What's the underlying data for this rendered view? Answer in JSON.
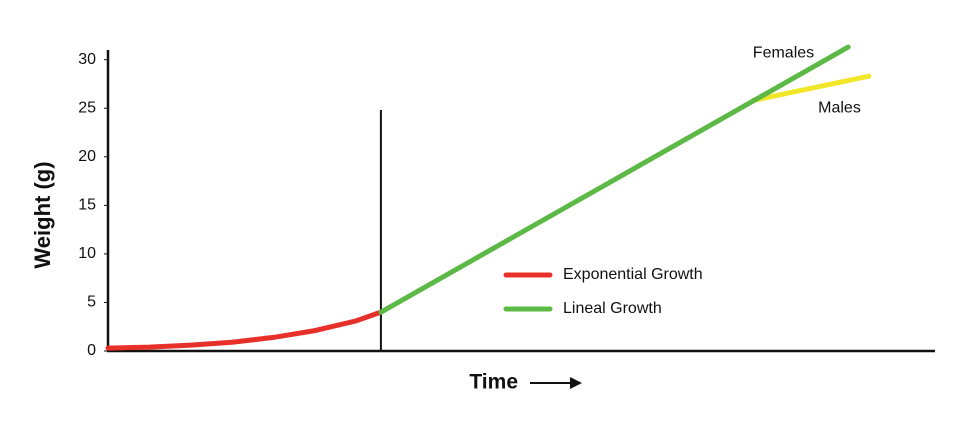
{
  "chart_data": {
    "type": "line",
    "ylabel": "Weight (g)",
    "xlabel": "Time",
    "xlim": [
      0,
      100
    ],
    "ylim": [
      0,
      31
    ],
    "yticks": [
      0,
      5,
      10,
      15,
      20,
      25,
      30
    ],
    "series": [
      {
        "name": "Exponential Growth",
        "color": "#e8302a",
        "x": [
          0,
          5,
          10,
          15,
          20,
          25,
          30,
          33
        ],
        "values": [
          0.3,
          0.4,
          0.6,
          0.9,
          1.4,
          2.1,
          3.1,
          4.0
        ]
      },
      {
        "name": "Lineal Growth",
        "color": "#5cb946",
        "x": [
          33,
          89.5
        ],
        "values": [
          4.0,
          31.3
        ]
      },
      {
        "name": "Males",
        "color": "#f2e62a",
        "x": [
          78,
          92
        ],
        "values": [
          25.8,
          28.3
        ]
      }
    ],
    "annotations": [
      "Females"
    ]
  }
}
